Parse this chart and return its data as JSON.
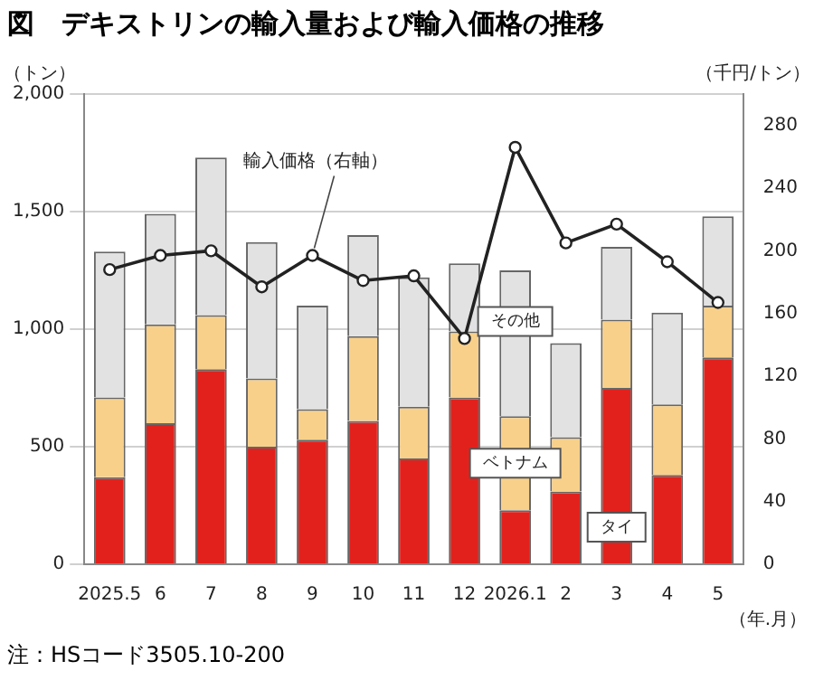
{
  "chart_data": {
    "type": "bar",
    "title": "図　デキストリンの輸入量および輸入価格の推移",
    "ylabel": "（トン）",
    "y2label": "（千円/トン）",
    "xlabel": "（年.月）",
    "annotations": [
      "注：HSコード3505.10-200"
    ],
    "categories": [
      "2025.5",
      "6",
      "7",
      "8",
      "9",
      "10",
      "11",
      "12",
      "2026.1",
      "2",
      "3",
      "4",
      "5"
    ],
    "stacked": true,
    "grid": "y",
    "legend": false,
    "ylim": [
      0,
      2000
    ],
    "yticks": [
      0,
      {
        "value": 500,
        "label": "500"
      },
      {
        "value": 1000,
        "label": "1,000"
      },
      {
        "value": 1500,
        "label": "1,500"
      },
      {
        "value": 2000,
        "label": "2,000"
      }
    ],
    "y2lim": [
      0,
      300
    ],
    "y2ticks": [
      0,
      40,
      80,
      120,
      160,
      200,
      240,
      280
    ],
    "series": [
      {
        "name": "タイ",
        "color": "#e3211c",
        "values": [
          370,
          600,
          830,
          500,
          530,
          610,
          450,
          710,
          230,
          310,
          750,
          380,
          880
        ]
      },
      {
        "name": "ベトナム",
        "color": "#f8d08a",
        "values": [
          340,
          420,
          230,
          290,
          130,
          360,
          220,
          280,
          400,
          230,
          290,
          300,
          220
        ]
      },
      {
        "name": "その他",
        "color": "#e2e2e2",
        "values": [
          620,
          470,
          670,
          580,
          440,
          430,
          550,
          290,
          620,
          400,
          310,
          390,
          380
        ]
      },
      {
        "name": "輸入価格（右軸）",
        "type": "line",
        "axis": "y2",
        "color": "#222222",
        "marker": "circle",
        "line_style": "solid",
        "values": [
          188,
          197,
          200,
          177,
          197,
          181,
          184,
          144,
          266,
          205,
          217,
          193,
          167
        ]
      }
    ]
  }
}
